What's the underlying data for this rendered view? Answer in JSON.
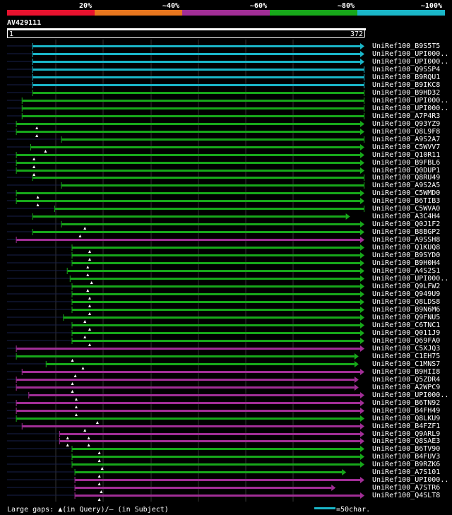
{
  "chart_data": {
    "type": "alignment",
    "query_name": "AV429111",
    "query_start": "1",
    "query_end": "372",
    "query_length": 372,
    "identity_scale": [
      {
        "label": "20%",
        "color": "#e8122e"
      },
      {
        "label": "~40%",
        "color": "#e8761e"
      },
      {
        "label": "~60%",
        "color": "#a12e96"
      },
      {
        "label": "~80%",
        "color": "#17a81a"
      },
      {
        "label": "~100%",
        "color": "#1ab6c8"
      }
    ],
    "colors": {
      "low": "#a12e96",
      "mid": "#17a81a",
      "high": "#1ab6c8"
    },
    "hits": [
      {
        "name": "UniRef100_B9S5T5",
        "start": 27,
        "end": 372,
        "color": "high",
        "arrow": true,
        "gaps": []
      },
      {
        "name": "UniRef100_UPI000..",
        "start": 27,
        "end": 372,
        "color": "high",
        "arrow": true,
        "gaps": []
      },
      {
        "name": "UniRef100_UPI000..",
        "start": 27,
        "end": 372,
        "color": "high",
        "arrow": true,
        "gaps": []
      },
      {
        "name": "UniRef100_Q9SSP4",
        "start": 27,
        "end": 372,
        "color": "high",
        "arrow": false,
        "gaps": []
      },
      {
        "name": "UniRef100_B9RQU1",
        "start": 27,
        "end": 372,
        "color": "high",
        "arrow": false,
        "gaps": []
      },
      {
        "name": "UniRef100_B9IKC8",
        "start": 27,
        "end": 372,
        "color": "high",
        "arrow": false,
        "gaps": []
      },
      {
        "name": "UniRef100_B9HD32",
        "start": 27,
        "end": 372,
        "color": "mid",
        "arrow": false,
        "gaps": []
      },
      {
        "name": "UniRef100_UPI000..",
        "start": 16,
        "end": 372,
        "color": "mid",
        "arrow": false,
        "gaps": []
      },
      {
        "name": "UniRef100_UPI000..",
        "start": 16,
        "end": 372,
        "color": "mid",
        "arrow": false,
        "gaps": []
      },
      {
        "name": "UniRef100_A7P4R3",
        "start": 16,
        "end": 372,
        "color": "mid",
        "arrow": false,
        "gaps": []
      },
      {
        "name": "UniRef100_Q93YZ9",
        "start": 10,
        "end": 372,
        "color": "mid",
        "arrow": true,
        "gaps": [
          31
        ]
      },
      {
        "name": "UniRef100_Q8L9F8",
        "start": 10,
        "end": 372,
        "color": "mid",
        "arrow": true,
        "gaps": [
          31
        ]
      },
      {
        "name": "UniRef100_A9S2A7",
        "start": 57,
        "end": 372,
        "color": "mid",
        "arrow": false,
        "gaps": []
      },
      {
        "name": "UniRef100_C5WVV7",
        "start": 25,
        "end": 372,
        "color": "mid",
        "arrow": true,
        "gaps": [
          40
        ]
      },
      {
        "name": "UniRef100_Q10R11",
        "start": 10,
        "end": 372,
        "color": "mid",
        "arrow": true,
        "gaps": [
          28
        ]
      },
      {
        "name": "UniRef100_B9FBL6",
        "start": 10,
        "end": 372,
        "color": "mid",
        "arrow": true,
        "gaps": [
          28
        ]
      },
      {
        "name": "UniRef100_Q0DUP1",
        "start": 10,
        "end": 372,
        "color": "mid",
        "arrow": true,
        "gaps": [
          28
        ]
      },
      {
        "name": "UniRef100_Q8RU49",
        "start": 27,
        "end": 372,
        "color": "mid",
        "arrow": false,
        "gaps": []
      },
      {
        "name": "UniRef100_A9S2A5",
        "start": 57,
        "end": 372,
        "color": "mid",
        "arrow": false,
        "gaps": []
      },
      {
        "name": "UniRef100_C5WMD0",
        "start": 10,
        "end": 372,
        "color": "mid",
        "arrow": true,
        "gaps": [
          32
        ]
      },
      {
        "name": "UniRef100_B6TIB3",
        "start": 10,
        "end": 372,
        "color": "mid",
        "arrow": true,
        "gaps": [
          32
        ]
      },
      {
        "name": "UniRef100_C5WVA0",
        "start": 50,
        "end": 372,
        "color": "mid",
        "arrow": false,
        "gaps": []
      },
      {
        "name": "UniRef100_A3C4H4",
        "start": 27,
        "end": 357,
        "color": "mid",
        "arrow": true,
        "gaps": []
      },
      {
        "name": "UniRef100_Q0J1F2",
        "start": 57,
        "end": 372,
        "color": "mid",
        "arrow": true,
        "gaps": [
          81
        ]
      },
      {
        "name": "UniRef100_B8BGP2",
        "start": 27,
        "end": 372,
        "color": "mid",
        "arrow": true,
        "gaps": [
          76
        ]
      },
      {
        "name": "UniRef100_A9SSH8",
        "start": 10,
        "end": 372,
        "color": "low",
        "arrow": true,
        "gaps": []
      },
      {
        "name": "UniRef100_Q1KUQ8",
        "start": 68,
        "end": 372,
        "color": "mid",
        "arrow": true,
        "gaps": [
          86
        ]
      },
      {
        "name": "UniRef100_B9SYD0",
        "start": 68,
        "end": 372,
        "color": "mid",
        "arrow": true,
        "gaps": [
          86
        ]
      },
      {
        "name": "UniRef100_B9H0H4",
        "start": 68,
        "end": 372,
        "color": "mid",
        "arrow": true,
        "gaps": [
          84
        ]
      },
      {
        "name": "UniRef100_A4S2S1",
        "start": 63,
        "end": 372,
        "color": "mid",
        "arrow": true,
        "gaps": [
          84
        ]
      },
      {
        "name": "UniRef100_UPI000..",
        "start": 66,
        "end": 372,
        "color": "mid",
        "arrow": true,
        "gaps": [
          88
        ]
      },
      {
        "name": "UniRef100_Q9LFW2",
        "start": 68,
        "end": 372,
        "color": "mid",
        "arrow": true,
        "gaps": [
          84
        ]
      },
      {
        "name": "UniRef100_Q949U9",
        "start": 68,
        "end": 372,
        "color": "mid",
        "arrow": true,
        "gaps": [
          86
        ]
      },
      {
        "name": "UniRef100_Q8LDS8",
        "start": 68,
        "end": 372,
        "color": "mid",
        "arrow": true,
        "gaps": [
          86
        ]
      },
      {
        "name": "UniRef100_B9N6M6",
        "start": 68,
        "end": 372,
        "color": "mid",
        "arrow": true,
        "gaps": [
          86
        ]
      },
      {
        "name": "UniRef100_Q9FNU5",
        "start": 59,
        "end": 372,
        "color": "mid",
        "arrow": true,
        "gaps": [
          81
        ]
      },
      {
        "name": "UniRef100_C6TNC1",
        "start": 68,
        "end": 372,
        "color": "mid",
        "arrow": true,
        "gaps": [
          86
        ]
      },
      {
        "name": "UniRef100_Q011J9",
        "start": 68,
        "end": 372,
        "color": "mid",
        "arrow": true,
        "gaps": [
          81
        ]
      },
      {
        "name": "UniRef100_Q69FA0",
        "start": 68,
        "end": 372,
        "color": "mid",
        "arrow": true,
        "gaps": [
          86
        ]
      },
      {
        "name": "UniRef100_C5XJQ3",
        "start": 10,
        "end": 372,
        "color": "low",
        "arrow": true,
        "gaps": []
      },
      {
        "name": "UniRef100_C1EH75",
        "start": 10,
        "end": 366,
        "color": "mid",
        "arrow": true,
        "gaps": [
          68
        ]
      },
      {
        "name": "UniRef100_C1MNS7",
        "start": 41,
        "end": 366,
        "color": "mid",
        "arrow": true,
        "gaps": [
          79
        ]
      },
      {
        "name": "UniRef100_B9HII8",
        "start": 16,
        "end": 372,
        "color": "low",
        "arrow": true,
        "gaps": [
          71
        ]
      },
      {
        "name": "UniRef100_Q5ZDR4",
        "start": 10,
        "end": 366,
        "color": "low",
        "arrow": true,
        "gaps": [
          68
        ]
      },
      {
        "name": "UniRef100_A2WPC9",
        "start": 10,
        "end": 366,
        "color": "low",
        "arrow": true,
        "gaps": [
          68
        ]
      },
      {
        "name": "UniRef100_UPI000..",
        "start": 23,
        "end": 372,
        "color": "low",
        "arrow": true,
        "gaps": [
          72
        ]
      },
      {
        "name": "UniRef100_B6TN92",
        "start": 10,
        "end": 372,
        "color": "low",
        "arrow": true,
        "gaps": [
          72
        ]
      },
      {
        "name": "UniRef100_B4FH49",
        "start": 10,
        "end": 372,
        "color": "low",
        "arrow": true,
        "gaps": [
          72
        ]
      },
      {
        "name": "UniRef100_Q8LKU9",
        "start": 10,
        "end": 372,
        "color": "mid",
        "arrow": true,
        "gaps": [
          94
        ]
      },
      {
        "name": "UniRef100_B4FZF1",
        "start": 16,
        "end": 372,
        "color": "low",
        "arrow": true,
        "gaps": [
          81
        ]
      },
      {
        "name": "UniRef100_Q9ARL9",
        "start": 55,
        "end": 372,
        "color": "low",
        "arrow": true,
        "gaps": [
          63,
          85
        ]
      },
      {
        "name": "UniRef100_Q8SAE3",
        "start": 55,
        "end": 372,
        "color": "low",
        "arrow": true,
        "gaps": [
          63,
          85
        ]
      },
      {
        "name": "UniRef100_B6TV90",
        "start": 68,
        "end": 372,
        "color": "mid",
        "arrow": true,
        "gaps": [
          96
        ]
      },
      {
        "name": "UniRef100_B4FUV3",
        "start": 68,
        "end": 372,
        "color": "mid",
        "arrow": true,
        "gaps": [
          96
        ]
      },
      {
        "name": "UniRef100_B9RZK6",
        "start": 68,
        "end": 372,
        "color": "mid",
        "arrow": true,
        "gaps": [
          99
        ]
      },
      {
        "name": "UniRef100_A7S101",
        "start": 71,
        "end": 353,
        "color": "mid",
        "arrow": true,
        "gaps": [
          96
        ]
      },
      {
        "name": "UniRef100_UPI000..",
        "start": 71,
        "end": 372,
        "color": "low",
        "arrow": true,
        "gaps": [
          96
        ]
      },
      {
        "name": "UniRef100_A7STR6",
        "start": 71,
        "end": 342,
        "color": "low",
        "arrow": true,
        "gaps": [
          98
        ]
      },
      {
        "name": "UniRef100_Q4SLT8",
        "start": 71,
        "end": 372,
        "color": "low",
        "arrow": true,
        "gaps": [
          96
        ]
      }
    ],
    "legend_text": "Large gaps: ▲(in Query)/– (in Subject)",
    "scale_text": "=50char."
  }
}
